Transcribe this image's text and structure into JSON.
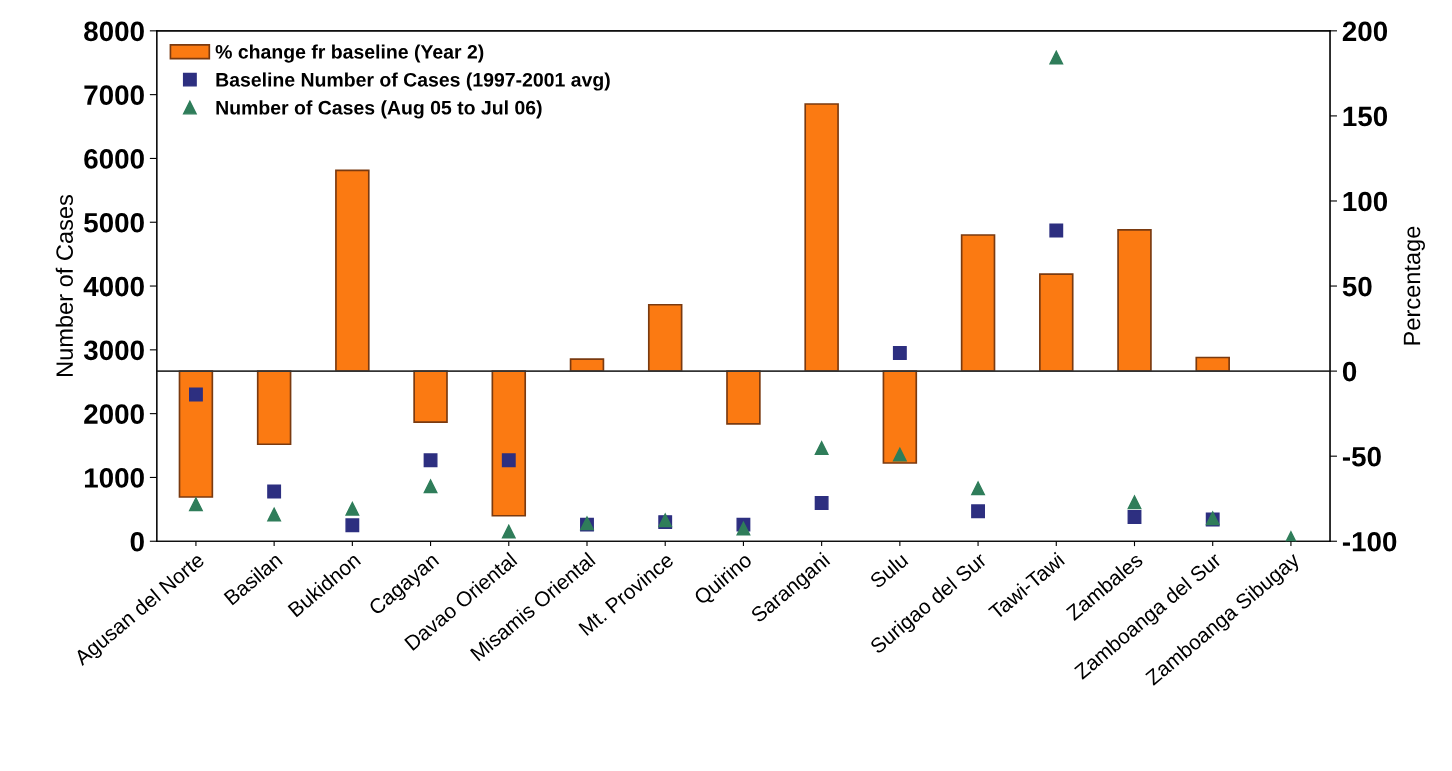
{
  "chart_data": {
    "type": "bar",
    "categories": [
      "Agusan del Norte",
      "Basilan",
      "Bukidnon",
      "Cagayan",
      "Davao Oriental",
      "Misamis Oriental",
      "Mt. Province",
      "Quirino",
      "Sarangani",
      "Sulu",
      "Surigao del Sur",
      "Tawi-Tawi",
      "Zambales",
      "Zamboanga del Sur",
      "Zamboanga Sibugay"
    ],
    "ylabel": "Number of Cases",
    "y2label": "Percentage",
    "ylim": [
      0,
      8000
    ],
    "yticks": [
      0,
      1000,
      2000,
      3000,
      4000,
      5000,
      6000,
      7000,
      8000
    ],
    "y2lim": [
      -100,
      200
    ],
    "y2ticks": [
      -100,
      -50,
      0,
      50,
      100,
      150,
      200
    ],
    "legend": "top left",
    "series": [
      {
        "name": "% change fr baseline (Year 2)",
        "axis": "y2",
        "color": "#fb7a12",
        "values": [
          -74,
          -43,
          118,
          -30,
          -85,
          7,
          39,
          -31,
          157,
          -54,
          80,
          57,
          83,
          8,
          null
        ]
      },
      {
        "name": "Baseline Number of Cases (1997-2001 avg)",
        "type": "scatter",
        "marker": "square",
        "color": "#2d2f80",
        "values": [
          2300,
          780,
          250,
          1270,
          1270,
          260,
          300,
          260,
          600,
          2950,
          470,
          4870,
          380,
          340,
          null
        ]
      },
      {
        "name": "Number of Cases (Aug 05 to Jul 06)",
        "type": "scatter",
        "marker": "triangle",
        "color": "#2f7d5a",
        "values": [
          580,
          420,
          510,
          860,
          150,
          280,
          330,
          200,
          1460,
          1360,
          830,
          7580,
          610,
          360,
          50
        ]
      }
    ]
  }
}
